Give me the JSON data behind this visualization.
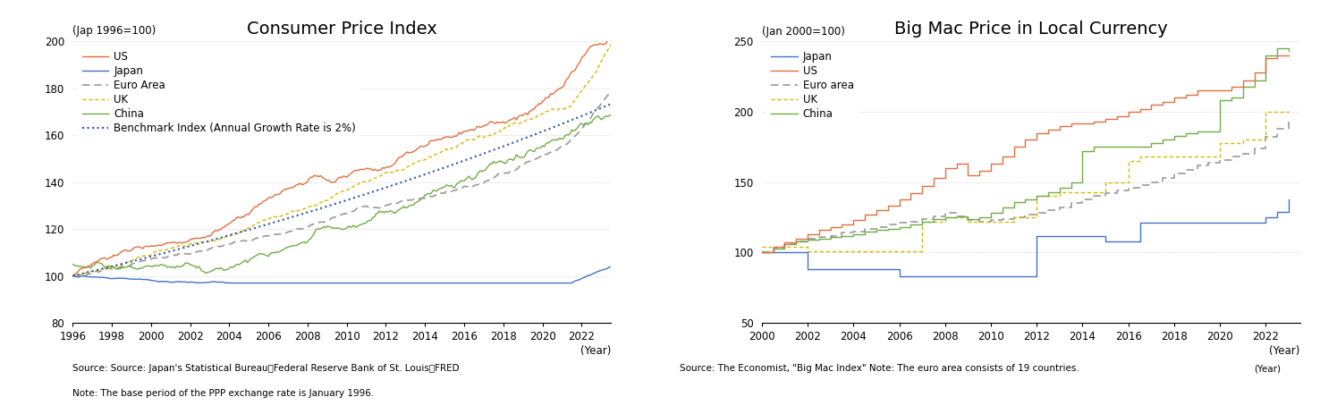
{
  "cpi": {
    "title": "Consumer Price Index",
    "ylabel": "(Jap 1996=100)",
    "xlabel": "(Year)",
    "ylim": [
      80,
      200
    ],
    "yticks": [
      80,
      100,
      120,
      140,
      160,
      180,
      200
    ],
    "xlim": [
      1996,
      2023.5
    ],
    "xticks": [
      1996,
      1998,
      2000,
      2002,
      2004,
      2006,
      2008,
      2010,
      2012,
      2014,
      2016,
      2018,
      2020,
      2022
    ],
    "source": "Source: Source: Japan's Statistical Bureau、Federal Reserve Bank of St. Louis・FRED",
    "note": "Note: The base period of the PPP exchange rate is January 1996.",
    "series": {
      "US": {
        "color": "#E07040",
        "linestyle": "-",
        "linewidth": 1.0
      },
      "Japan": {
        "color": "#4472C4",
        "linestyle": "-",
        "linewidth": 1.0
      },
      "Euro Area": {
        "color": "#999999",
        "linestyle": "--",
        "linewidth": 1.2
      },
      "UK": {
        "color": "#D4B800",
        "linestyle": "--",
        "linewidth": 1.0
      },
      "China": {
        "color": "#70AD47",
        "linestyle": "-",
        "linewidth": 1.0
      },
      "Benchmark": {
        "color": "#3355AA",
        "linestyle": ":",
        "linewidth": 1.5
      }
    }
  },
  "bigmac": {
    "title": "Big Mac Price in Local Currency",
    "ylabel": "(Jan 2000=100)",
    "xlabel": "(Year)",
    "ylim": [
      50,
      250
    ],
    "yticks": [
      50,
      100,
      150,
      200,
      250
    ],
    "xlim": [
      2000,
      2023.5
    ],
    "xticks": [
      2000,
      2002,
      2004,
      2006,
      2008,
      2010,
      2012,
      2014,
      2016,
      2018,
      2020,
      2022
    ],
    "source": "Source: The Economist, \"Big Mac Index\" Note: The euro area consists of 19 countries.",
    "note_year": "(Year)",
    "series": {
      "Japan": {
        "color": "#4472C4",
        "linestyle": "-",
        "linewidth": 1.0
      },
      "US": {
        "color": "#E07040",
        "linestyle": "-",
        "linewidth": 1.0
      },
      "Euro area": {
        "color": "#999999",
        "linestyle": "--",
        "linewidth": 1.2
      },
      "UK": {
        "color": "#D4B800",
        "linestyle": "--",
        "linewidth": 1.0
      },
      "China": {
        "color": "#70AD47",
        "linestyle": "-",
        "linewidth": 1.0
      }
    }
  },
  "background_color": "#FFFFFF",
  "grid_color": "#BBBBBB",
  "title_fontsize": 14,
  "label_fontsize": 8.5,
  "legend_fontsize": 8.5,
  "tick_fontsize": 8.5,
  "source_fontsize": 7.5
}
